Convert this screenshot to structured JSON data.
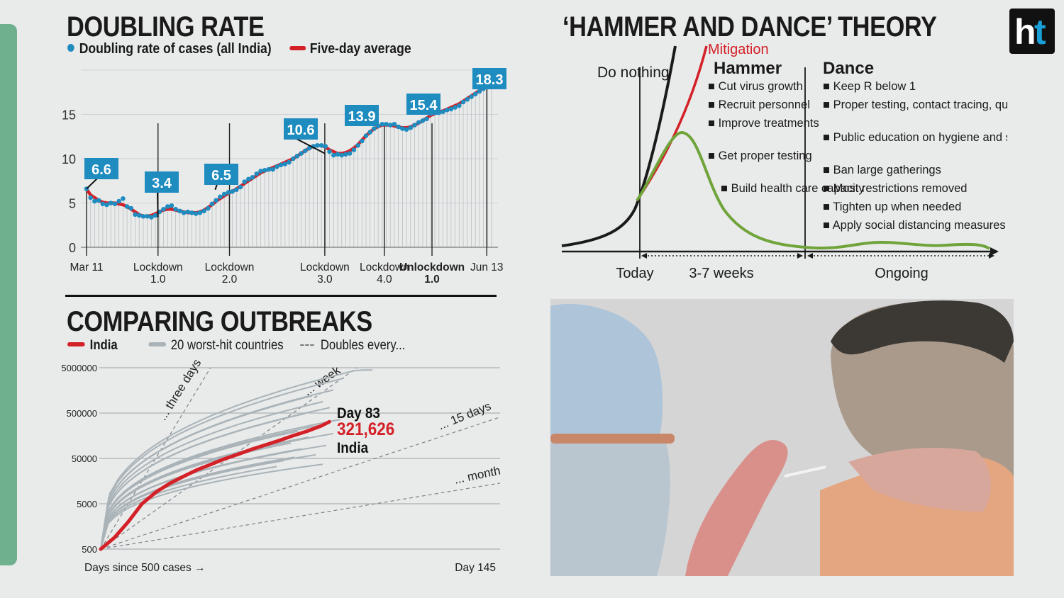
{
  "brand": {
    "logo_text": "ht",
    "accent": "#1aa0d8"
  },
  "colors": {
    "blue": "#1f8cc0",
    "red": "#d42027",
    "green": "#6fa43a",
    "grey": "#a9b3b8",
    "sidebar": "#6fb08e"
  },
  "chart_data": [
    {
      "type": "line",
      "title": "DOUBLING RATE",
      "legend": [
        "Doubling rate of cases (all India)",
        "Five-day average"
      ],
      "yticks": [
        "0",
        "5",
        "10",
        "15"
      ],
      "ylim": [
        0,
        20
      ],
      "x_labels": [
        {
          "line1": "Mar 11",
          "line2": ""
        },
        {
          "line1": "Lockdown",
          "line2": "1.0"
        },
        {
          "line1": "Lockdown",
          "line2": "2.0"
        },
        {
          "line1": "Lockdown",
          "line2": "3.0"
        },
        {
          "line1": "Lockdown",
          "line2": "4.0"
        },
        {
          "line1": "Unlockdown",
          "line2": "1.0"
        },
        {
          "line1": "Jun 13",
          "line2": ""
        }
      ],
      "x_markers": [
        0,
        25,
        40,
        55,
        65,
        81,
        95
      ],
      "callouts": [
        {
          "day": 0,
          "value": "6.6"
        },
        {
          "day": 25,
          "value": "3.4"
        },
        {
          "day": 55,
          "value": "6.5"
        },
        {
          "day": 96,
          "value": "10.6"
        },
        {
          "day": 120,
          "value": "13.9"
        },
        {
          "day": 145,
          "value": "15.4"
        },
        {
          "day": 168,
          "value": "18.3"
        }
      ],
      "x_days": [
        0,
        170
      ],
      "daily_values": [
        6.6,
        5.6,
        5.2,
        5.3,
        4.9,
        4.8,
        5.0,
        4.9,
        5.2,
        5.5,
        4.6,
        4.4,
        3.7,
        3.6,
        3.5,
        3.5,
        3.4,
        3.6,
        4.0,
        4.3,
        4.6,
        4.7,
        4.3,
        4.1,
        3.9,
        4.0,
        3.9,
        3.8,
        3.9,
        4.1,
        4.4,
        4.9,
        5.3,
        5.7,
        6.0,
        6.2,
        6.3,
        6.5,
        6.8,
        7.4,
        7.7,
        7.9,
        8.3,
        8.6,
        8.7,
        8.8,
        8.8,
        9.1,
        9.3,
        9.4,
        9.6,
        10.0,
        10.3,
        10.6,
        10.9,
        11.2,
        11.4,
        11.5,
        11.5,
        11.4,
        10.8,
        10.4,
        10.5,
        10.4,
        10.5,
        10.6,
        11.0,
        11.5,
        12.0,
        12.6,
        13.0,
        13.4,
        13.7,
        13.9,
        13.9,
        13.8,
        13.9,
        13.6,
        13.4,
        13.3,
        13.5,
        13.8,
        14.1,
        14.3,
        14.5,
        15.1,
        15.2,
        15.2,
        15.3,
        15.5,
        15.6,
        15.8,
        16.0,
        16.4,
        16.7,
        17.0,
        17.3,
        17.6,
        17.9,
        18.1,
        18.3
      ],
      "average_values": [
        6.6,
        5.9,
        5.6,
        5.3,
        5.1,
        5.0,
        5.0,
        5.0,
        4.9,
        4.8,
        4.6,
        4.3,
        4.0,
        3.7,
        3.5,
        3.5,
        3.6,
        3.8,
        4.0,
        4.2,
        4.3,
        4.3,
        4.2,
        4.1,
        4.0,
        3.9,
        3.9,
        3.9,
        4.0,
        4.2,
        4.5,
        4.8,
        5.2,
        5.5,
        5.8,
        6.1,
        6.3,
        6.6,
        6.9,
        7.2,
        7.5,
        7.8,
        8.1,
        8.4,
        8.6,
        8.8,
        9.0,
        9.2,
        9.4,
        9.6,
        9.8,
        10.0,
        10.3,
        10.6,
        10.9,
        11.2,
        11.4,
        11.5,
        11.5,
        11.3,
        11.0,
        10.8,
        10.6,
        10.6,
        10.7,
        10.9,
        11.2,
        11.6,
        12.1,
        12.6,
        13.0,
        13.4,
        13.6,
        13.8,
        13.8,
        13.8,
        13.7,
        13.6,
        13.5,
        13.5,
        13.6,
        13.8,
        14.0,
        14.3,
        14.6,
        14.9,
        15.1,
        15.3,
        15.4,
        15.6,
        15.8,
        16.0,
        16.2,
        16.5,
        16.8,
        17.1,
        17.4,
        17.7,
        18.0,
        18.3,
        18.6
      ]
    },
    {
      "type": "line",
      "title": "COMPARING OUTBREAKS",
      "scale": "log",
      "legend": [
        "India",
        "20 worst-hit countries",
        "Doubles every..."
      ],
      "yticks": [
        "500",
        "5000",
        "50000",
        "500000",
        "5000000"
      ],
      "xlabel_left": "Days since 500 cases →",
      "xlabel_right": "Day 145",
      "x_range": [
        0,
        145
      ],
      "doubling_labels": [
        "... three days",
        "... week",
        "... 15 days",
        "... month"
      ],
      "doubling_days": [
        3,
        7,
        15,
        30
      ],
      "india_series": {
        "name": "India",
        "days": [
          0,
          5,
          10,
          15,
          20,
          25,
          30,
          35,
          40,
          45,
          50,
          55,
          60,
          65,
          70,
          75,
          80,
          83
        ],
        "cases": [
          500,
          900,
          2000,
          5000,
          9000,
          14000,
          20000,
          28000,
          37000,
          49000,
          62000,
          80000,
          100000,
          125000,
          160000,
          200000,
          260000,
          321626
        ]
      },
      "annotation": {
        "day": "Day 83",
        "value": "321,626",
        "label": "India"
      }
    },
    {
      "type": "line",
      "title": "‘HAMMER AND DANCE’ THEORY",
      "curves": [
        "Do nothing",
        "Mitigation"
      ],
      "sections": [
        {
          "heading": "Hammer",
          "items": [
            "Cut virus growth",
            "Recruit personnel",
            "Improve treatments",
            "Get proper testing",
            "Build health care capacity"
          ]
        },
        {
          "heading": "Dance",
          "items": [
            "Keep R below 1",
            "Proper testing, contact tracing, quarantining, isolating",
            "Public education on hygiene and social distancing",
            "Ban large gatherings",
            "Most restrictions removed",
            "Tighten up when needed",
            "Apply social distancing measures"
          ]
        }
      ],
      "timeline": [
        "Today",
        "3-7 weeks",
        "Ongoing"
      ]
    }
  ]
}
